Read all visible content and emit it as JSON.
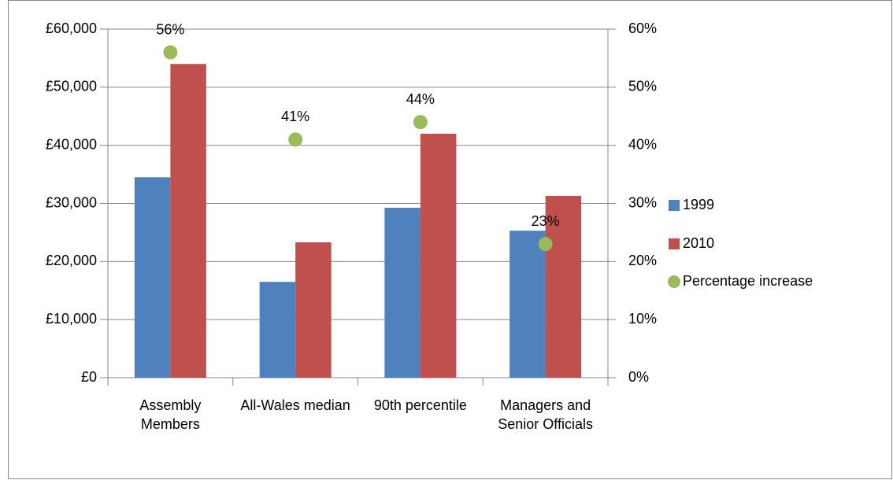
{
  "chart_data": {
    "type": "bar",
    "categories": [
      "Assembly Members",
      "All-Wales median",
      "90th percentile",
      "Managers and Senior Officials"
    ],
    "series": [
      {
        "name": "1999",
        "color": "#4f81bd",
        "values": [
          34500,
          16500,
          29250,
          25300
        ]
      },
      {
        "name": "2010",
        "color": "#c0504d",
        "values": [
          54000,
          23300,
          42000,
          31300
        ]
      },
      {
        "name": "Percentage increase",
        "color": "#9bbb59",
        "axis": "y2",
        "type": "scatter",
        "values": [
          56,
          41,
          44,
          23
        ],
        "value_labels": [
          "56%",
          "41%",
          "44%",
          "23%"
        ]
      }
    ],
    "ylim": [
      0,
      60000
    ],
    "yticks": [
      {
        "value": 0,
        "label": "£0"
      },
      {
        "value": 10000,
        "label": "£10,000"
      },
      {
        "value": 20000,
        "label": "£20,000"
      },
      {
        "value": 30000,
        "label": "£30,000"
      },
      {
        "value": 40000,
        "label": "£40,000"
      },
      {
        "value": 50000,
        "label": "£50,000"
      },
      {
        "value": 60000,
        "label": "£60,000"
      }
    ],
    "y2lim": [
      0,
      60
    ],
    "y2ticks": [
      {
        "value": 0,
        "label": "0%"
      },
      {
        "value": 10,
        "label": "10%"
      },
      {
        "value": 20,
        "label": "20%"
      },
      {
        "value": 30,
        "label": "30%"
      },
      {
        "value": 40,
        "label": "40%"
      },
      {
        "value": 50,
        "label": "50%"
      },
      {
        "value": 60,
        "label": "60%"
      }
    ],
    "grid": true,
    "legend": "right"
  }
}
